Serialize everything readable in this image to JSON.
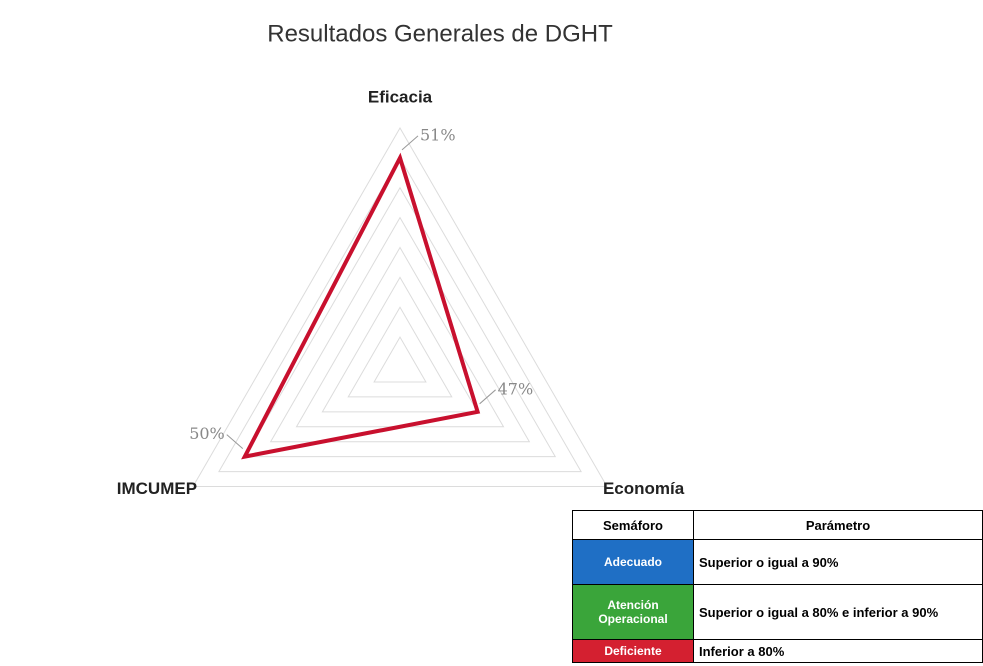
{
  "chart_data": {
    "type": "radar",
    "title": "Resultados Generales de DGHT",
    "categories": [
      "Eficacia",
      "Economía",
      "IMCUMEP"
    ],
    "values": [
      51,
      47,
      50
    ],
    "value_labels": [
      "51%",
      "47%",
      "50%"
    ],
    "color": "#c8102e",
    "rlim": [
      44,
      52
    ],
    "rticks": [
      44,
      45,
      46,
      47,
      48,
      49,
      50,
      51,
      52
    ],
    "grid": true
  },
  "legend_table": {
    "headers": [
      "Semáforo",
      "Parámetro"
    ],
    "rows": [
      {
        "label": "Adecuado",
        "color": "#1f6fc5",
        "parameter": "Superior o igual a 90%"
      },
      {
        "label": "Atención Operacional",
        "color": "#3aa53a",
        "parameter": "Superior o igual a 80% e inferior a 90%"
      },
      {
        "label": "Deficiente",
        "color": "#d42030",
        "parameter": "Inferior a 80%"
      }
    ]
  }
}
